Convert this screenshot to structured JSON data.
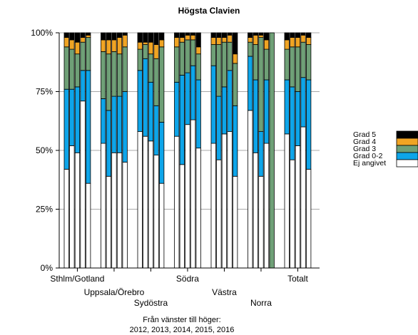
{
  "chart_data": {
    "type": "bar",
    "stacked": true,
    "title": "Högsta Clavien",
    "y_ticks": [
      "0%",
      "25%",
      "50%",
      "75%",
      "100%"
    ],
    "ylim": [
      0,
      100
    ],
    "grid": true,
    "legend_position": "right",
    "groups": [
      "Sthlm/Gotland",
      "Uppsala/Örebro",
      "Sydöstra",
      "Södra",
      "Västra",
      "Norra",
      "Totalt"
    ],
    "years": [
      2012,
      2013,
      2014,
      2015,
      2016
    ],
    "series": [
      {
        "name": "Ej angivet",
        "color": "#ffffff",
        "values": [
          [
            42,
            52,
            49,
            71,
            36
          ],
          [
            53,
            39,
            49,
            49,
            45
          ],
          [
            58,
            56,
            54,
            48,
            36
          ],
          [
            56,
            44,
            61,
            63,
            51
          ],
          [
            53,
            46,
            57,
            58,
            39
          ],
          [
            67,
            49,
            39,
            53,
            0
          ],
          [
            57,
            46,
            52,
            60,
            42
          ]
        ]
      },
      {
        "name": "Grad 0-2",
        "color": "#0ea5e9",
        "values": [
          [
            34,
            24,
            28,
            13,
            48
          ],
          [
            19,
            28,
            24,
            24,
            30
          ],
          [
            26,
            33,
            25,
            21,
            26
          ],
          [
            23,
            38,
            22,
            23,
            29
          ],
          [
            33,
            27,
            20,
            26,
            30
          ],
          [
            23,
            31,
            19,
            27,
            0
          ],
          [
            23,
            31,
            23,
            21,
            38
          ]
        ]
      },
      {
        "name": "Grad 3",
        "color": "#6fa077",
        "values": [
          [
            18,
            17,
            14,
            12,
            14
          ],
          [
            20,
            24,
            19,
            18,
            19
          ],
          [
            9,
            6,
            12,
            20,
            32
          ],
          [
            15,
            14,
            14,
            11,
            11
          ],
          [
            9,
            22,
            19,
            12,
            18
          ],
          [
            6,
            15,
            40,
            13,
            100
          ],
          [
            13,
            17,
            19,
            15,
            15
          ]
        ]
      },
      {
        "name": "Grad 4",
        "color": "#f0a424",
        "values": [
          [
            4,
            4,
            5,
            2,
            1
          ],
          [
            5,
            6,
            5,
            7,
            5
          ],
          [
            3,
            1,
            5,
            6,
            3
          ],
          [
            4,
            2,
            2,
            2,
            3
          ],
          [
            3,
            3,
            2,
            3,
            4
          ],
          [
            2,
            4,
            1,
            4,
            0
          ],
          [
            4,
            4,
            4,
            3,
            3
          ]
        ]
      },
      {
        "name": "Grad 5",
        "color": "#000000",
        "values": [
          [
            2,
            3,
            4,
            2,
            1
          ],
          [
            3,
            3,
            3,
            2,
            1
          ],
          [
            4,
            4,
            4,
            5,
            3
          ],
          [
            2,
            2,
            1,
            1,
            6
          ],
          [
            2,
            2,
            2,
            1,
            9
          ],
          [
            2,
            1,
            1,
            3,
            0
          ],
          [
            3,
            2,
            2,
            1,
            2
          ]
        ]
      }
    ],
    "footnote": [
      "Från vänster till höger:",
      "2012, 2013, 2014, 2015, 2016"
    ]
  }
}
